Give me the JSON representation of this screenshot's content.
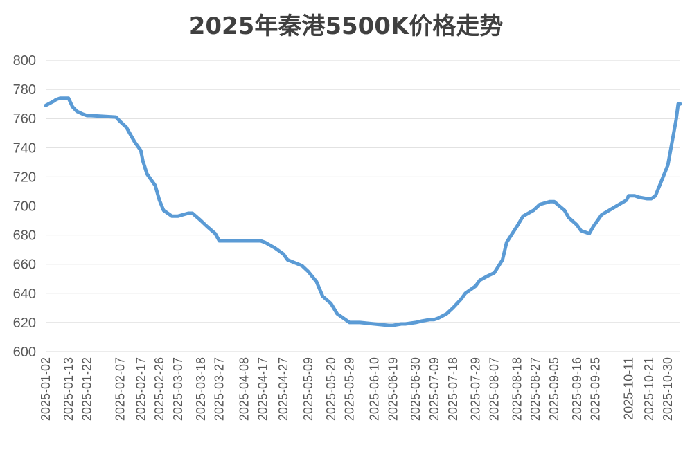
{
  "chart_data": {
    "type": "line",
    "title": "2025年秦港5500K价格走势",
    "xlabel": "",
    "ylabel": "",
    "ylim": [
      600,
      800
    ],
    "yticks": [
      "600",
      "620",
      "640",
      "660",
      "680",
      "700",
      "720",
      "740",
      "760",
      "780",
      "800"
    ],
    "grid": true,
    "legend": "none",
    "line_color": "#5B9BD5",
    "xtick_labels": [
      "2025-01-02",
      "2025-01-13",
      "2025-01-22",
      "2025-02-07",
      "2025-02-17",
      "2025-02-26",
      "2025-03-07",
      "2025-03-18",
      "2025-03-27",
      "2025-04-08",
      "2025-04-17",
      "2025-04-27",
      "2025-05-09",
      "2025-05-20",
      "2025-05-29",
      "2025-06-10",
      "2025-06-19",
      "2025-06-30",
      "2025-07-09",
      "2025-07-18",
      "2025-07-29",
      "2025-08-07",
      "2025-08-18",
      "2025-08-27",
      "2025-09-05",
      "2025-09-16",
      "2025-09-25",
      "2025-10-11",
      "2025-10-21",
      "2025-10-30"
    ],
    "series": [
      {
        "x": [
          "2025-01-02",
          "2025-01-06",
          "2025-01-07",
          "2025-01-09",
          "2025-01-13",
          "2025-01-15",
          "2025-01-17",
          "2025-01-20",
          "2025-01-22",
          "2025-01-24",
          "2025-02-05",
          "2025-02-07",
          "2025-02-10",
          "2025-02-12",
          "2025-02-14",
          "2025-02-17",
          "2025-02-18",
          "2025-02-20",
          "2025-02-24",
          "2025-02-26",
          "2025-02-28",
          "2025-03-04",
          "2025-03-07",
          "2025-03-12",
          "2025-03-14",
          "2025-03-18",
          "2025-03-21",
          "2025-03-25",
          "2025-03-27",
          "2025-04-08",
          "2025-04-10",
          "2025-04-16",
          "2025-04-18",
          "2025-04-23",
          "2025-04-27",
          "2025-04-29",
          "2025-05-06",
          "2025-05-09",
          "2025-05-13",
          "2025-05-16",
          "2025-05-20",
          "2025-05-23",
          "2025-05-29",
          "2025-06-03",
          "2025-06-17",
          "2025-06-19",
          "2025-06-23",
          "2025-06-25",
          "2025-06-30",
          "2025-07-03",
          "2025-07-07",
          "2025-07-09",
          "2025-07-11",
          "2025-07-15",
          "2025-07-18",
          "2025-07-22",
          "2025-07-24",
          "2025-07-29",
          "2025-07-31",
          "2025-08-04",
          "2025-08-07",
          "2025-08-11",
          "2025-08-13",
          "2025-08-18",
          "2025-08-21",
          "2025-08-26",
          "2025-08-29",
          "2025-09-03",
          "2025-09-05",
          "2025-09-10",
          "2025-09-12",
          "2025-09-16",
          "2025-09-18",
          "2025-09-22",
          "2025-09-24",
          "2025-09-28",
          "2025-10-10",
          "2025-10-11",
          "2025-10-14",
          "2025-10-16",
          "2025-10-20",
          "2025-10-22",
          "2025-10-24",
          "2025-10-30",
          "2025-11-03",
          "2025-11-04",
          "2025-11-05"
        ],
        "values": [
          769,
          772,
          773,
          774,
          774,
          768,
          765,
          763,
          762,
          762,
          761,
          758,
          754,
          749,
          744,
          738,
          731,
          722,
          714,
          704,
          697,
          693,
          693,
          695,
          695,
          690,
          686,
          681,
          676,
          676,
          676,
          676,
          675,
          671,
          667,
          663,
          659,
          655,
          648,
          638,
          633,
          626,
          620,
          620,
          618,
          618,
          619,
          619,
          620,
          621,
          622,
          622,
          623,
          626,
          630,
          636,
          640,
          645,
          649,
          652,
          654,
          663,
          675,
          686,
          693,
          697,
          701,
          703,
          703,
          697,
          692,
          687,
          683,
          681,
          686,
          694,
          704,
          707,
          707,
          706,
          705,
          705,
          707,
          728,
          759,
          770,
          770
        ]
      }
    ]
  }
}
